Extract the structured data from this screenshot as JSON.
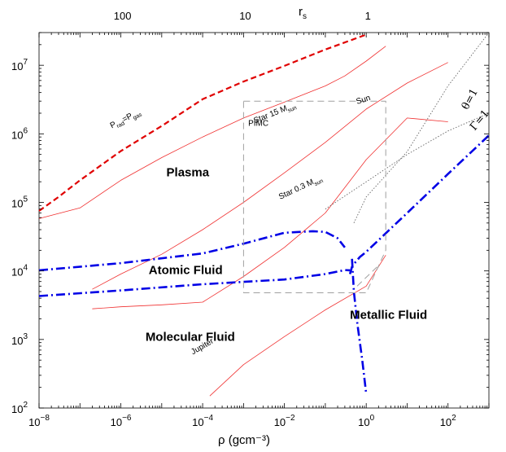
{
  "chart_data": {
    "type": "line",
    "title": "",
    "xlabel": "ρ (gcm⁻³)",
    "ylabel": "",
    "top_axis_label": "r",
    "top_axis_label_sub": "s",
    "xscale": "log",
    "yscale": "log",
    "xlim": [
      1e-08,
      1000
    ],
    "ylim": [
      100,
      30000000
    ],
    "grid": false,
    "x_ticks": [
      {
        "value": 1e-08,
        "base": "10",
        "exp": "−8"
      },
      {
        "value": 1e-06,
        "base": "10",
        "exp": "−6"
      },
      {
        "value": 0.0001,
        "base": "10",
        "exp": "−4"
      },
      {
        "value": 0.01,
        "base": "10",
        "exp": "−2"
      },
      {
        "value": 1,
        "base": "10",
        "exp": "0"
      },
      {
        "value": 100,
        "base": "10",
        "exp": "2"
      }
    ],
    "y_ticks": [
      {
        "value": 100,
        "base": "10",
        "exp": "2"
      },
      {
        "value": 1000,
        "base": "10",
        "exp": "3"
      },
      {
        "value": 10000,
        "base": "10",
        "exp": "4"
      },
      {
        "value": 100000,
        "base": "10",
        "exp": "5"
      },
      {
        "value": 1000000,
        "base": "10",
        "exp": "6"
      },
      {
        "value": 10000000,
        "base": "10",
        "exp": "7"
      }
    ],
    "top_ticks": [
      {
        "label": "100",
        "rho": 1.1e-06
      },
      {
        "label": "10",
        "rho": 0.0011
      },
      {
        "label": "1",
        "rho": 1.1
      }
    ],
    "series": [
      {
        "key": "prad_pgas",
        "style": "red-dashed",
        "x": [
          1e-08,
          3e-08,
          1e-07,
          1e-06,
          1e-05,
          0.0001,
          0.001,
          0.01,
          0.1,
          1
        ],
        "y": [
          75000,
          120000,
          210000,
          560000,
          1300000,
          3200000,
          5800000,
          9800000,
          17000000,
          28000000
        ]
      },
      {
        "key": "star15",
        "style": "red-thin",
        "x": [
          1e-08,
          1e-07,
          1e-06,
          1e-05,
          0.0001,
          0.001,
          0.01,
          0.1,
          0.3,
          1,
          3
        ],
        "y": [
          58000,
          83000,
          210000,
          450000,
          900000,
          1700000,
          2900000,
          5000000,
          7000000,
          11500000,
          19000000
        ]
      },
      {
        "key": "sun",
        "style": "red-thin",
        "x": [
          2e-07,
          1e-06,
          1e-05,
          0.0001,
          0.001,
          0.01,
          0.1,
          1,
          10,
          100
        ],
        "y": [
          5400,
          9000,
          17500,
          40000,
          100000,
          270000,
          750000,
          2300000,
          5500000,
          11000000
        ]
      },
      {
        "key": "star03",
        "style": "red-thin",
        "x": [
          2e-07,
          1e-06,
          1e-05,
          0.0001,
          0.001,
          0.01,
          0.1,
          1,
          10,
          100
        ],
        "y": [
          2800,
          3000,
          3200,
          3500,
          8300,
          22000,
          70000,
          420000,
          1700000,
          1500000
        ]
      },
      {
        "key": "jupiter",
        "style": "red-thin",
        "x": [
          0.00015,
          0.001,
          0.01,
          0.1,
          1,
          3
        ],
        "y": [
          150,
          430,
          1100,
          2700,
          6000,
          17000
        ]
      },
      {
        "key": "theta1",
        "style": "gray-dotted",
        "x": [
          0.5,
          1,
          10,
          100,
          1000
        ],
        "y": [
          50000,
          120000,
          550000,
          5000000,
          30000000
        ]
      },
      {
        "key": "gamma1",
        "style": "gray-dotted",
        "x": [
          0.1,
          1,
          10,
          100,
          1000
        ],
        "y": [
          80000,
          200000,
          500000,
          1100000,
          2000000
        ]
      },
      {
        "key": "boundary_plasma",
        "style": "blue-dashdot",
        "x": [
          1e-08,
          1e-06,
          0.0001,
          0.001,
          0.01,
          0.05,
          0.1,
          0.2,
          0.3
        ],
        "y": [
          10200,
          13000,
          18000,
          25000,
          36000,
          38000,
          37000,
          30000,
          22000
        ]
      },
      {
        "key": "boundary_atomic",
        "style": "blue-dashdot",
        "x": [
          1e-08,
          1e-06,
          0.0001,
          0.01,
          0.1,
          0.3,
          0.4
        ],
        "y": [
          4300,
          5200,
          6400,
          7500,
          9000,
          10300,
          10200
        ]
      },
      {
        "key": "boundary_metal",
        "style": "blue-dashdot",
        "x": [
          0.4,
          0.45,
          0.55,
          0.7,
          1,
          10,
          100,
          1000
        ],
        "y": [
          9000,
          11500,
          13500,
          16000,
          19000,
          70000,
          260000,
          950000
        ]
      },
      {
        "key": "boundary_vertical",
        "style": "blue-dashdot",
        "x": [
          0.45,
          0.5,
          0.6,
          0.8,
          1
        ],
        "y": [
          15000,
          5000,
          1800,
          500,
          160
        ]
      },
      {
        "key": "pimc",
        "style": "gray-dashed-box",
        "x": [
          0.001,
          3,
          3,
          1,
          0.001,
          0.001
        ],
        "y": [
          3000000,
          3000000,
          20000,
          4800,
          4800,
          3000000
        ]
      },
      {
        "key": "pimc_diag",
        "style": "gray-dashed",
        "x": [
          0.6,
          2
        ],
        "y": [
          6000,
          12000
        ]
      }
    ],
    "annotations": [
      {
        "key": "prad",
        "parts": [
          "P",
          "rad",
          "=P",
          "gas"
        ],
        "x": 6e-07,
        "y": 1200000,
        "angle": -27
      },
      {
        "key": "star15",
        "parts": [
          "Star 15 M",
          "sun"
        ],
        "x": 0.0019,
        "y": 1420000,
        "angle": -22
      },
      {
        "key": "sun",
        "parts": [
          "Sun"
        ],
        "x": 0.6,
        "y": 2700000,
        "angle": -18
      },
      {
        "key": "star03",
        "parts": [
          "Star 0.3 M",
          "sun"
        ],
        "x": 0.0079,
        "y": 110000,
        "angle": -25
      },
      {
        "key": "jupiter",
        "parts": [
          "Jupiter"
        ],
        "x": 5.8e-05,
        "y": 600,
        "angle": -30
      },
      {
        "key": "pimc",
        "parts": [
          "PIMC"
        ],
        "x": 0.0013,
        "y": 1300000,
        "angle": 0
      },
      {
        "key": "theta",
        "parts": [
          "θ=1"
        ],
        "x": 300,
        "y": 2200000,
        "angle": -62
      },
      {
        "key": "gamma",
        "parts": [
          "Γ=1"
        ],
        "x": 450,
        "y": 1100000,
        "angle": -50
      }
    ],
    "region_labels": [
      {
        "key": "plasma",
        "text": "Plasma",
        "x": 1.3e-05,
        "y": 240000
      },
      {
        "key": "atomic",
        "text": "Atomic Fluid",
        "x": 4.8e-06,
        "y": 9000
      },
      {
        "key": "metallic",
        "text": "Metallic Fluid",
        "x": 0.4,
        "y": 2000
      },
      {
        "key": "molecular",
        "text": "Molecular Fluid",
        "x": 4e-06,
        "y": 950
      }
    ]
  }
}
